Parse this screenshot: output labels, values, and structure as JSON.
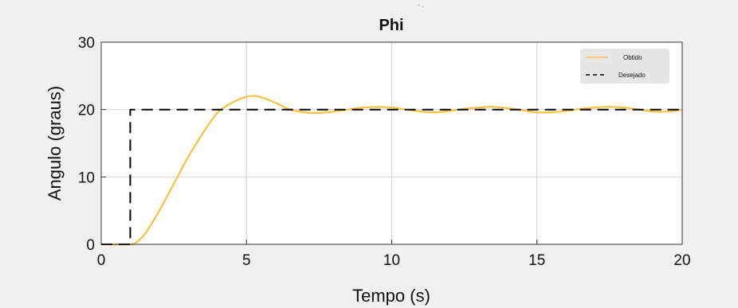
{
  "figure": {
    "background": "#f0f0f0",
    "plot_background": "#ffffff"
  },
  "chart_data": {
    "type": "line",
    "title": "Phi",
    "xlabel": "Tempo (s)",
    "ylabel": "Angulo (graus)",
    "xlim": [
      0,
      20
    ],
    "ylim": [
      0,
      30
    ],
    "xticks": [
      0,
      5,
      10,
      15,
      20
    ],
    "yticks": [
      0,
      10,
      20,
      30
    ],
    "xtick_labels": [
      "0",
      "5",
      "10",
      "15",
      "20"
    ],
    "ytick_labels": [
      "0",
      "10",
      "20",
      "30"
    ],
    "grid": true,
    "legend_position": "top-right",
    "series": [
      {
        "name": "Obtido",
        "color": "#f5c242",
        "style": "solid",
        "x": [
          0,
          1.0,
          1.2,
          1.5,
          2.0,
          2.5,
          3.0,
          3.5,
          4.0,
          4.5,
          5.0,
          5.3,
          5.6,
          6.0,
          6.5,
          7.0,
          7.5,
          8.0,
          8.5,
          9.0,
          9.5,
          10.0,
          10.5,
          11.0,
          11.5,
          12.0,
          12.5,
          13.0,
          13.5,
          14.0,
          14.5,
          15.0,
          15.5,
          16.0,
          16.5,
          17.0,
          17.5,
          18.0,
          18.5,
          19.0,
          19.5,
          20.0
        ],
        "y": [
          0,
          0,
          0.3,
          1.5,
          5.0,
          9.0,
          13.0,
          16.5,
          19.5,
          21.0,
          21.9,
          22.0,
          21.7,
          21.0,
          20.0,
          19.6,
          19.5,
          19.7,
          20.0,
          20.3,
          20.4,
          20.3,
          20.0,
          19.7,
          19.6,
          19.8,
          20.1,
          20.3,
          20.4,
          20.2,
          19.9,
          19.6,
          19.6,
          19.8,
          20.1,
          20.3,
          20.4,
          20.3,
          20.0,
          19.7,
          19.7,
          20.0
        ]
      },
      {
        "name": "Desejado",
        "color": "#000000",
        "style": "dashed",
        "x": [
          0,
          1.0,
          1.0,
          20
        ],
        "y": [
          0,
          0,
          20,
          20
        ]
      }
    ]
  },
  "top_mark": "- ."
}
